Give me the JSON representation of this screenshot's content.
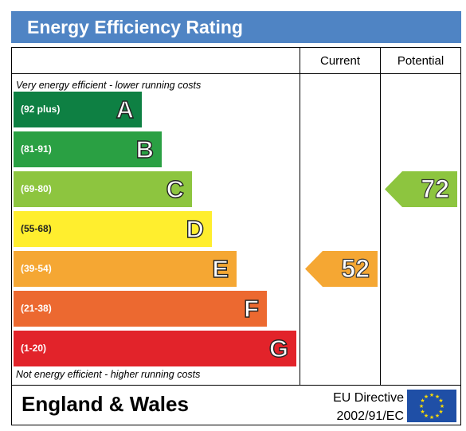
{
  "title": "Energy Efficiency Rating",
  "columns": {
    "current": "Current",
    "potential": "Potential"
  },
  "notes": {
    "top": "Very energy efficient - lower running costs",
    "bottom": "Not energy efficient - higher running costs"
  },
  "bands": [
    {
      "letter": "A",
      "range": "(92 plus)",
      "color": "#0e8043"
    },
    {
      "letter": "B",
      "range": "(81-91)",
      "color": "#2aa043"
    },
    {
      "letter": "C",
      "range": "(69-80)",
      "color": "#8dc53f"
    },
    {
      "letter": "D",
      "range": "(55-68)",
      "color": "#ffee2e"
    },
    {
      "letter": "E",
      "range": "(39-54)",
      "color": "#f5a733"
    },
    {
      "letter": "F",
      "range": "(21-38)",
      "color": "#ec6930"
    },
    {
      "letter": "G",
      "range": "(1-20)",
      "color": "#e2232a"
    }
  ],
  "ratings": {
    "current": {
      "value": "52",
      "band": "E",
      "color": "#f5a733"
    },
    "potential": {
      "value": "72",
      "band": "C",
      "color": "#8dc53f"
    }
  },
  "footer": {
    "region": "England & Wales",
    "directive_line1": "EU Directive",
    "directive_line2": "2002/91/EC"
  },
  "flag_icon": "eu-flag-icon"
}
